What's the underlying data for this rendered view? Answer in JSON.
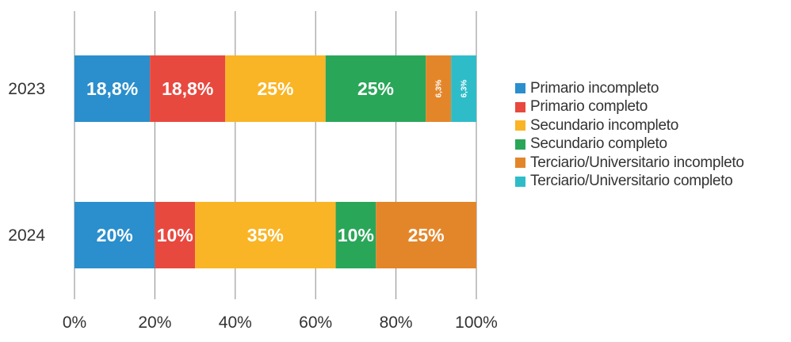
{
  "chart_data": {
    "type": "bar",
    "orientation": "horizontal",
    "stacked": "percent",
    "title": "",
    "xlabel": "",
    "ylabel": "",
    "xlim": [
      0,
      100
    ],
    "x_tick_labels": [
      "0%",
      "20%",
      "40%",
      "60%",
      "80%",
      "100%"
    ],
    "grid": "vertical",
    "legend_position": "right",
    "categories": [
      "2023",
      "2024"
    ],
    "series": [
      {
        "name": "Primario incompleto",
        "color": "#2a8fcc",
        "values": [
          18.8,
          20
        ],
        "labels": [
          "18,8%",
          "20%"
        ]
      },
      {
        "name": "Primario completo",
        "color": "#e8493f",
        "values": [
          18.8,
          10
        ],
        "labels": [
          "18,8%",
          "10%"
        ]
      },
      {
        "name": "Secundario incompleto",
        "color": "#f9b526",
        "values": [
          25,
          35
        ],
        "labels": [
          "25%",
          "35%"
        ]
      },
      {
        "name": "Secundario completo",
        "color": "#2aa659",
        "values": [
          25,
          10
        ],
        "labels": [
          "25%",
          "10%"
        ]
      },
      {
        "name": "Terciario/Universitario incompleto",
        "color": "#e3862a",
        "values": [
          6.3,
          25
        ],
        "labels": [
          "6,3%",
          "25%"
        ]
      },
      {
        "name": "Terciario/Universitario completo",
        "color": "#2fbcc9",
        "values": [
          6.3,
          0
        ],
        "labels": [
          "6,3%",
          ""
        ]
      }
    ]
  }
}
